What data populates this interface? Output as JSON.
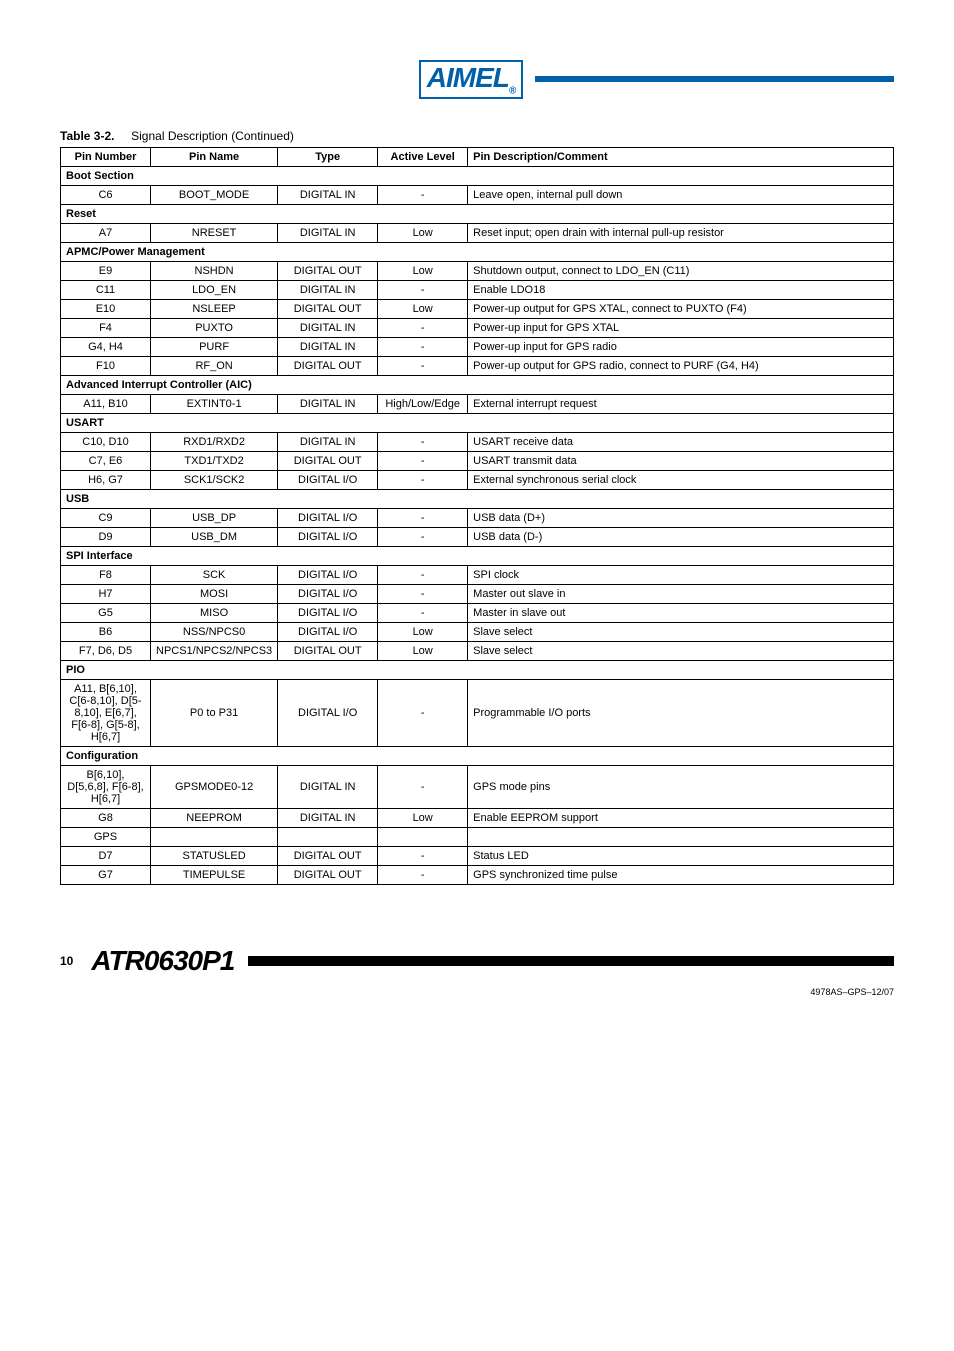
{
  "logo": {
    "text": "AIMEL",
    "reg": "®"
  },
  "caption": {
    "label": "Table 3-2.",
    "title": "Signal Description  (Continued)"
  },
  "headers": {
    "pinnum": "Pin Number",
    "pinname": "Pin Name",
    "type": "Type",
    "level": "Active Level",
    "desc": "Pin Description/Comment"
  },
  "sections": [
    {
      "title": "Boot Section",
      "rows": [
        {
          "num": "C6",
          "name": "BOOT_MODE",
          "type": "DIGITAL IN",
          "level": "-",
          "desc": "Leave open, internal pull down"
        }
      ]
    },
    {
      "title": "Reset",
      "rows": [
        {
          "num": "A7",
          "name": "NRESET",
          "type": "DIGITAL IN",
          "level": "Low",
          "desc": "Reset input; open drain with internal pull-up resistor"
        }
      ]
    },
    {
      "title": "APMC/Power Management",
      "rows": [
        {
          "num": "E9",
          "name": "NSHDN",
          "type": "DIGITAL OUT",
          "level": "Low",
          "desc": "Shutdown output, connect to LDO_EN (C11)"
        },
        {
          "num": "C11",
          "name": "LDO_EN",
          "type": "DIGITAL IN",
          "level": "-",
          "desc": "Enable LDO18"
        },
        {
          "num": "E10",
          "name": "NSLEEP",
          "type": "DIGITAL OUT",
          "level": "Low",
          "desc": "Power-up output for GPS XTAL, connect to PUXTO (F4)"
        },
        {
          "num": "F4",
          "name": "PUXTO",
          "type": "DIGITAL IN",
          "level": "-",
          "desc": "Power-up input for GPS XTAL"
        },
        {
          "num": "G4, H4",
          "name": "PURF",
          "type": "DIGITAL IN",
          "level": "-",
          "desc": "Power-up input for GPS radio"
        },
        {
          "num": "F10",
          "name": "RF_ON",
          "type": "DIGITAL OUT",
          "level": "-",
          "desc": "Power-up output for GPS radio, connect to PURF (G4, H4)"
        }
      ]
    },
    {
      "title": "Advanced Interrupt Controller (AIC)",
      "rows": [
        {
          "num": "A11, B10",
          "name": "EXTINT0-1",
          "type": "DIGITAL IN",
          "level": "High/Low/Edge",
          "desc": "External interrupt request"
        }
      ]
    },
    {
      "title": "USART",
      "rows": [
        {
          "num": "C10, D10",
          "name": "RXD1/RXD2",
          "type": "DIGITAL IN",
          "level": "-",
          "desc": "USART receive data"
        },
        {
          "num": "C7, E6",
          "name": "TXD1/TXD2",
          "type": "DIGITAL OUT",
          "level": "-",
          "desc": "USART transmit data"
        },
        {
          "num": "H6, G7",
          "name": "SCK1/SCK2",
          "type": "DIGITAL I/O",
          "level": "-",
          "desc": "External synchronous serial clock"
        }
      ]
    },
    {
      "title": "USB",
      "rows": [
        {
          "num": "C9",
          "name": "USB_DP",
          "type": "DIGITAL I/O",
          "level": "-",
          "desc": "USB data (D+)"
        },
        {
          "num": "D9",
          "name": "USB_DM",
          "type": "DIGITAL I/O",
          "level": "-",
          "desc": "USB data (D-)"
        }
      ]
    },
    {
      "title": "SPI Interface",
      "rows": [
        {
          "num": "F8",
          "name": "SCK",
          "type": "DIGITAL I/O",
          "level": "-",
          "desc": "SPI clock"
        },
        {
          "num": "H7",
          "name": "MOSI",
          "type": "DIGITAL I/O",
          "level": "-",
          "desc": "Master out slave in"
        },
        {
          "num": "G5",
          "name": "MISO",
          "type": "DIGITAL I/O",
          "level": "-",
          "desc": "Master in slave out"
        },
        {
          "num": "B6",
          "name": "NSS/NPCS0",
          "type": "DIGITAL I/O",
          "level": "Low",
          "desc": "Slave select"
        },
        {
          "num": "F7, D6, D5",
          "name": "NPCS1/NPCS2/NPCS3",
          "type": "DIGITAL OUT",
          "level": "Low",
          "desc": "Slave select"
        }
      ]
    },
    {
      "title": "PIO",
      "rows": [
        {
          "num": "A11, B[6,10], C[6-8,10], D[5-8,10], E[6,7], F[6-8], G[5-8], H[6,7]",
          "name": "P0 to P31",
          "type": "DIGITAL I/O",
          "level": "-",
          "desc": "Programmable I/O ports"
        }
      ]
    },
    {
      "title": "Configuration",
      "rows": [
        {
          "num": "B[6,10], D[5,6,8], F[6-8], H[6,7]",
          "name": "GPSMODE0-12",
          "type": "DIGITAL IN",
          "level": "-",
          "desc": "GPS mode pins"
        },
        {
          "num": "G8",
          "name": "NEEPROM",
          "type": "DIGITAL IN",
          "level": "Low",
          "desc": "Enable EEPROM support"
        },
        {
          "num": "GPS",
          "name": "",
          "type": "",
          "level": "",
          "desc": ""
        },
        {
          "num": "D7",
          "name": "STATUSLED",
          "type": "DIGITAL OUT",
          "level": "-",
          "desc": "Status LED"
        },
        {
          "num": "G7",
          "name": "TIMEPULSE",
          "type": "DIGITAL OUT",
          "level": "-",
          "desc": "GPS synchronized time pulse"
        }
      ]
    }
  ],
  "footer": {
    "page": "10",
    "part": "ATR0630P1"
  },
  "docid": "4978AS–GPS–12/07"
}
